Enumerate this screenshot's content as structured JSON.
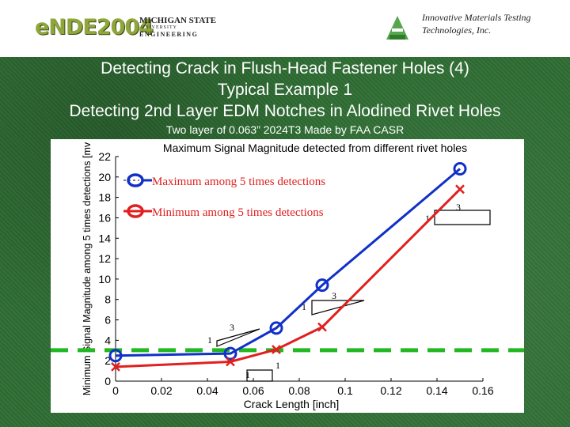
{
  "header": {
    "nde_logo_text": "eNDE2004",
    "msu_logo": {
      "line1": "MICHIGAN STATE",
      "line2": "UNIVERSITY",
      "line3": "ENGINEERING"
    },
    "company_line1": "Innovative Materials Testing",
    "company_line2": "Technologies, Inc."
  },
  "slide": {
    "title_line1": "Detecting Crack in Flush-Head Fastener Holes (4)",
    "title_line2": "Typical Example 1",
    "title_line3": "Detecting 2nd Layer EDM Notches in Alodined Rivet Holes",
    "subtitle": "Two layer of 0.063” 2024T3 Made by FAA CASR"
  },
  "colors": {
    "max_series": "#1030c8",
    "min_series": "#e02020",
    "threshold": "#22b822"
  },
  "chart_data": {
    "type": "line",
    "title": "Maximum Signal Magnitude detected from different rivet holes",
    "xlabel": "Crack Length [inch]",
    "ylabel": "Minimum Signal Magnitude among 5 times detections [mv",
    "xlim": [
      0,
      0.16
    ],
    "ylim": [
      0,
      22
    ],
    "xticks": [
      "0",
      "0.02",
      "0.04",
      "0.06",
      "0.08",
      "0.1",
      "0.12",
      "0.14",
      "0.16"
    ],
    "yticks": [
      "0",
      "2",
      "4",
      "6",
      "8",
      "10",
      "12",
      "14",
      "16",
      "18",
      "20",
      "22"
    ],
    "grid": false,
    "legend_position": "top-left",
    "series": [
      {
        "name": "Maximum among 5 times detections",
        "marker": "circle",
        "x": [
          0,
          0.05,
          0.07,
          0.09,
          0.15
        ],
        "y": [
          2.5,
          2.7,
          5.2,
          9.4,
          20.8
        ]
      },
      {
        "name": "Minimum among 5 times detections",
        "marker": "x",
        "x": [
          0,
          0.05,
          0.07,
          0.09,
          0.15
        ],
        "y": [
          1.4,
          1.9,
          3.1,
          5.3,
          18.8
        ]
      }
    ],
    "threshold_y": 2.8,
    "slope_annotations": [
      {
        "run": "1",
        "rise": "3"
      },
      {
        "run": "1",
        "rise": "3"
      },
      {
        "run": "1",
        "rise": "3"
      },
      {
        "run": "1",
        "rise": "1"
      }
    ]
  }
}
